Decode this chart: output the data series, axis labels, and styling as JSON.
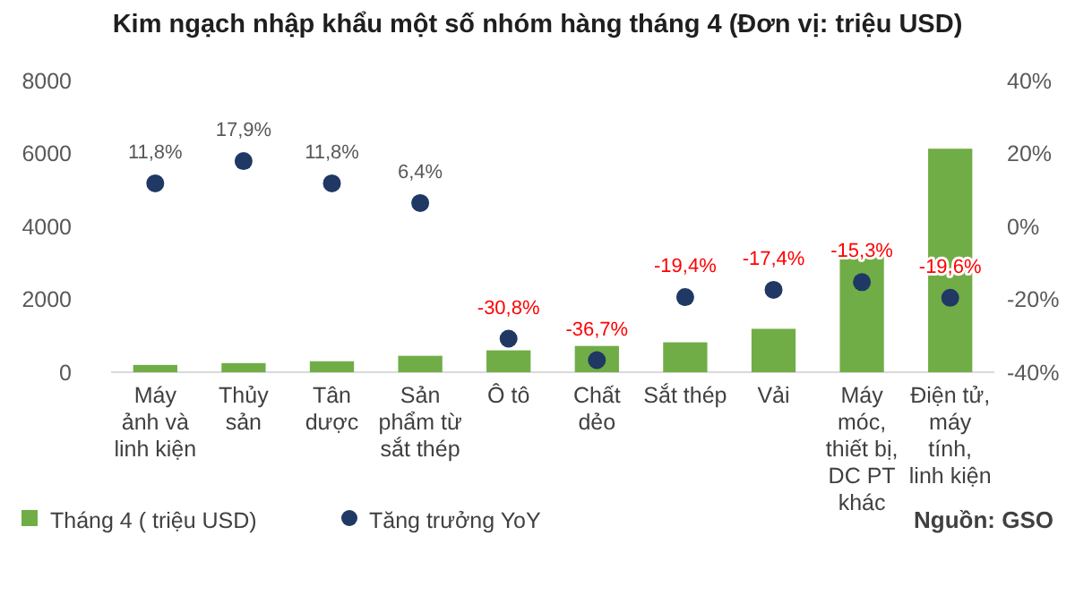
{
  "chart_data": {
    "type": "bar",
    "title": "Kim ngạch nhập khẩu một số nhóm hàng tháng 4 (Đơn vị: triệu USD)",
    "categories": [
      "Máy\nảnh và\nlinh kiện",
      "Thủy\nsản",
      "Tân\ndược",
      "Sản\nphẩm từ\nsắt thép",
      "Ô tô",
      "Chất\ndẻo",
      "Sắt thép",
      "Vải",
      "Máy\nmóc,\nthiết bị,\nDC PT\nkhác",
      "Điện tử,\nmáy\ntính,\nlinh kiện"
    ],
    "series": [
      {
        "name": "Tháng 4 ( triệu USD)",
        "color": "#70ad47",
        "values": [
          200,
          250,
          300,
          450,
          600,
          720,
          820,
          1190,
          3240,
          6130
        ]
      },
      {
        "name": "Tăng trưởng YoY",
        "type": "scatter",
        "axis": "y2",
        "color": "#1f3864",
        "values": [
          11.8,
          17.9,
          11.8,
          6.4,
          -30.8,
          -36.7,
          -19.4,
          -17.4,
          -15.3,
          -19.6
        ],
        "value_labels": [
          "11,8%",
          "17,9%",
          "11,8%",
          "6,4%",
          "-30,8%",
          "-36,7%",
          "-19,4%",
          "-17,4%",
          "-15,3%",
          "-19,6%"
        ]
      }
    ],
    "ylim": [
      0,
      8000
    ],
    "yticks": [
      0,
      2000,
      4000,
      6000,
      8000
    ],
    "y2lim": [
      -40,
      40
    ],
    "y2ticks": [
      {
        "value": -40,
        "label": "-40%"
      },
      {
        "value": -20,
        "label": "-20%"
      },
      {
        "value": 0,
        "label": "0%"
      },
      {
        "value": 20,
        "label": "20%"
      },
      {
        "value": 40,
        "label": "40%"
      }
    ],
    "marker": "circle",
    "legend": "bottom left",
    "grid": false,
    "annotations": [
      "Nguồn: GSO"
    ]
  }
}
